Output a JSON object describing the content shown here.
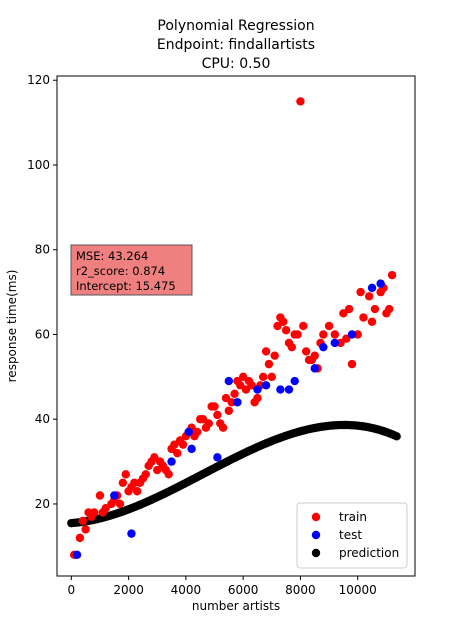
{
  "chart_data": {
    "type": "scatter",
    "title_lines": [
      "Polynomial Regression",
      "Endpoint: findallartists",
      "CPU: 0.50"
    ],
    "xlabel": "number artists",
    "ylabel": "response time(ms)",
    "xlim": [
      -500,
      12000
    ],
    "ylim": [
      3,
      121
    ],
    "xticks": [
      0,
      2000,
      4000,
      6000,
      8000,
      10000
    ],
    "yticks": [
      20,
      40,
      60,
      80,
      100,
      120
    ],
    "legend_position": "lower-right",
    "stats_box": {
      "lines": [
        "MSE: 43.264",
        "r2_score: 0.874",
        "Intercept: 15.475"
      ],
      "color": "#f08080"
    },
    "poly_coefficients": [
      15.475,
      0.0005,
      6.6e-07,
      -4.8e-11
    ],
    "series": [
      {
        "name": "train",
        "color": "#ff0000",
        "x": [
          100,
          300,
          400,
          500,
          600,
          700,
          800,
          1000,
          1100,
          1200,
          1400,
          1500,
          1600,
          1700,
          1800,
          1900,
          2000,
          2100,
          2200,
          2300,
          2400,
          2500,
          2600,
          2700,
          2800,
          2900,
          3000,
          3100,
          3200,
          3300,
          3400,
          3500,
          3600,
          3700,
          3800,
          3900,
          4000,
          4100,
          4200,
          4300,
          4400,
          4500,
          4600,
          4700,
          4800,
          4900,
          5000,
          5100,
          5200,
          5300,
          5400,
          5500,
          5600,
          5700,
          5800,
          5900,
          6000,
          6100,
          6200,
          6300,
          6400,
          6500,
          6600,
          6700,
          6800,
          6900,
          7000,
          7100,
          7200,
          7300,
          7400,
          7500,
          7600,
          7700,
          7800,
          7900,
          8000,
          8100,
          8200,
          8300,
          8400,
          8500,
          8600,
          8700,
          8800,
          9000,
          9200,
          9400,
          9500,
          9600,
          9700,
          9800,
          10000,
          10100,
          10200,
          10400,
          10500,
          10600,
          10800,
          10900,
          11000,
          11100,
          11200
        ],
        "y": [
          8,
          12,
          16,
          14,
          18,
          17,
          18,
          22,
          18,
          19,
          20,
          21,
          22,
          20,
          25,
          27,
          23,
          24,
          25,
          23,
          25,
          26,
          27,
          29,
          30,
          31,
          28,
          30,
          29,
          28,
          27,
          33,
          34,
          32,
          35,
          34,
          36,
          37,
          38,
          36,
          37,
          40,
          40,
          38,
          39,
          43,
          43,
          41,
          39,
          38,
          45,
          42,
          44,
          46,
          49,
          48,
          50,
          47,
          49,
          48,
          44,
          45,
          48,
          50,
          56,
          53,
          50,
          55,
          62,
          64,
          63,
          61,
          58,
          57,
          60,
          60,
          115,
          62,
          56,
          54,
          54,
          55,
          52,
          58,
          60,
          62,
          60,
          58,
          65,
          59,
          66,
          53,
          60,
          70,
          64,
          69,
          63,
          66,
          70,
          71,
          65,
          66,
          74
        ]
      },
      {
        "name": "test",
        "color": "#0000ff",
        "x": [
          200,
          1500,
          2100,
          3500,
          4100,
          4200,
          5100,
          5500,
          5800,
          6500,
          6800,
          7300,
          7600,
          7800,
          8500,
          8800,
          9200,
          9800,
          10500,
          10800
        ],
        "y": [
          8,
          22,
          13,
          30,
          37,
          33,
          31,
          49,
          44,
          47,
          48,
          47,
          47,
          49,
          52,
          57,
          58,
          60,
          71,
          72
        ]
      },
      {
        "name": "prediction",
        "color": "#000000",
        "x_range": [
          0,
          11400
        ],
        "x_step": 80
      }
    ]
  }
}
